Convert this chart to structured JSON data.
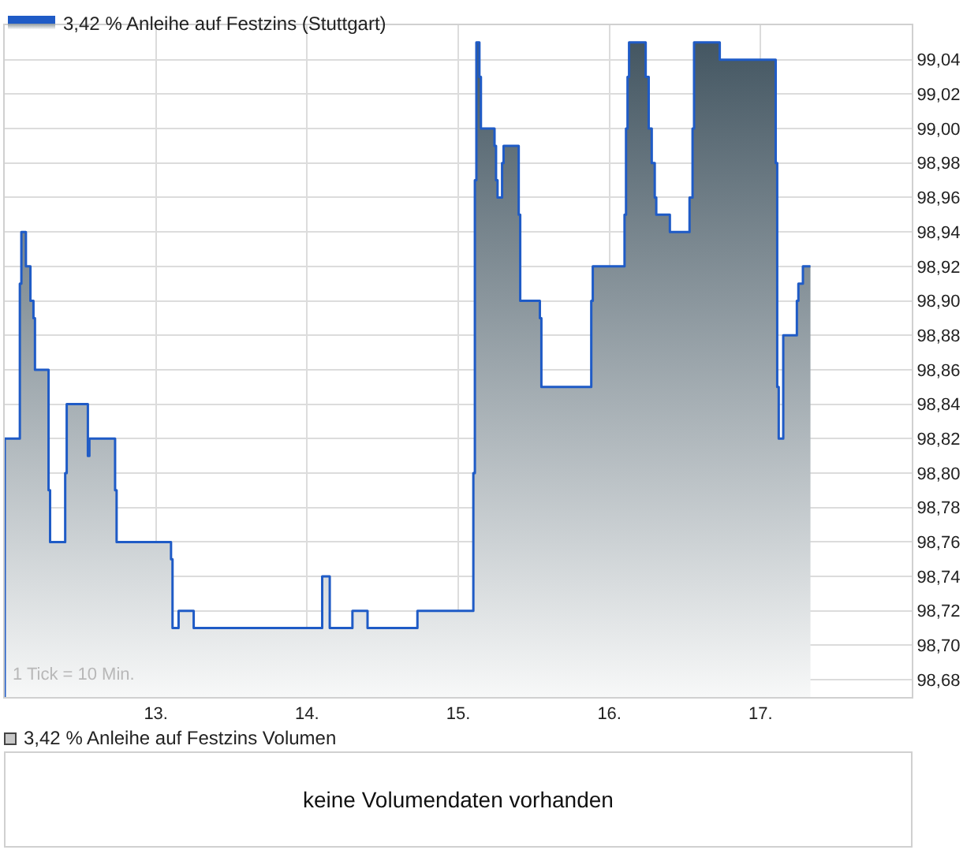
{
  "chart_data": [
    {
      "type": "area",
      "xlim": [
        12,
        18
      ],
      "ylim": [
        98.67,
        99.06
      ],
      "xticks": [
        {
          "value": 13,
          "label": "13."
        },
        {
          "value": 14,
          "label": "14."
        },
        {
          "value": 15,
          "label": "15."
        },
        {
          "value": 16,
          "label": "16."
        },
        {
          "value": 17,
          "label": "17."
        }
      ],
      "yticks": [
        {
          "value": 98.68,
          "label": "98,68"
        },
        {
          "value": 98.7,
          "label": "98,70"
        },
        {
          "value": 98.72,
          "label": "98,72"
        },
        {
          "value": 98.74,
          "label": "98,74"
        },
        {
          "value": 98.76,
          "label": "98,76"
        },
        {
          "value": 98.78,
          "label": "98,78"
        },
        {
          "value": 98.8,
          "label": "98,80"
        },
        {
          "value": 98.82,
          "label": "98,82"
        },
        {
          "value": 98.84,
          "label": "98,84"
        },
        {
          "value": 98.86,
          "label": "98,86"
        },
        {
          "value": 98.88,
          "label": "98,88"
        },
        {
          "value": 98.9,
          "label": "98,90"
        },
        {
          "value": 98.92,
          "label": "98,92"
        },
        {
          "value": 98.94,
          "label": "98,94"
        },
        {
          "value": 98.96,
          "label": "98,96"
        },
        {
          "value": 98.98,
          "label": "98,98"
        },
        {
          "value": 99.0,
          "label": "99,00"
        },
        {
          "value": 99.02,
          "label": "99,02"
        },
        {
          "value": 99.04,
          "label": "99,04"
        }
      ],
      "grid": true,
      "legend": "top left",
      "annotations": [
        "1 Tick = 10 Min."
      ],
      "series": [
        {
          "name": "3,42 % Anleihe auf Festzins (Stuttgart)",
          "color": "#1f5bc6",
          "x": [
            12.0,
            12.1,
            12.11,
            12.14,
            12.17,
            12.19,
            12.2,
            12.29,
            12.3,
            12.4,
            12.41,
            12.55,
            12.56,
            12.73,
            12.74,
            13.1,
            13.11,
            13.15,
            13.25,
            14.1,
            14.15,
            14.3,
            14.4,
            14.73,
            15.1,
            15.11,
            15.12,
            15.14,
            15.15,
            15.24,
            15.25,
            15.26,
            15.29,
            15.3,
            15.4,
            15.41,
            15.54,
            15.55,
            15.88,
            15.89,
            16.1,
            16.11,
            16.12,
            16.13,
            16.24,
            16.26,
            16.28,
            16.3,
            16.31,
            16.4,
            16.53,
            16.55,
            16.56,
            16.73,
            17.1,
            17.11,
            17.12,
            17.15,
            17.24,
            17.25,
            17.28,
            17.33
          ],
          "values": [
            98.82,
            98.91,
            98.94,
            98.92,
            98.9,
            98.89,
            98.86,
            98.79,
            98.76,
            98.8,
            98.84,
            98.81,
            98.82,
            98.79,
            98.76,
            98.75,
            98.71,
            98.72,
            98.71,
            98.74,
            98.71,
            98.72,
            98.71,
            98.72,
            98.8,
            98.97,
            99.05,
            99.03,
            99.0,
            98.99,
            98.97,
            98.96,
            98.98,
            98.99,
            98.95,
            98.9,
            98.89,
            98.85,
            98.9,
            98.92,
            98.95,
            99.0,
            99.03,
            99.05,
            99.03,
            99.0,
            98.98,
            98.96,
            98.95,
            98.94,
            98.96,
            99.0,
            99.05,
            99.04,
            98.98,
            98.85,
            98.82,
            98.88,
            98.9,
            98.91,
            98.92,
            98.92
          ]
        }
      ]
    },
    {
      "type": "other",
      "title": "3,42 % Anleihe auf Festzins Volumen",
      "annotations": [
        "keine Volumendaten vorhanden"
      ]
    }
  ]
}
